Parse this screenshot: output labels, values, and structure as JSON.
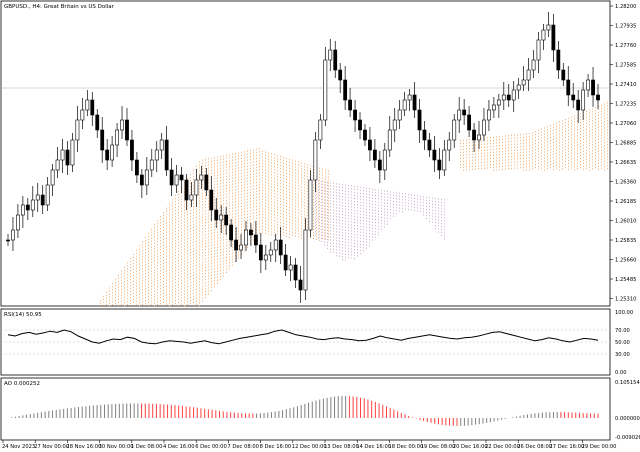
{
  "symbol": {
    "ticker": "GBPUSD",
    "timeframe": "H4",
    "description": "Great Britain vs US Dollar",
    "header_text": "GBPUSD., H4: Great Britain vs US Dollar"
  },
  "price_axis": {
    "ticks": [
      "1.28200",
      "1.27935",
      "1.27760",
      "1.27585",
      "1.27410",
      "1.27235",
      "1.27060",
      "1.26885",
      "1.26635",
      "1.26360",
      "1.26185",
      "1.26010",
      "1.25835",
      "1.25660",
      "1.25485",
      "1.25310"
    ],
    "current_price": "1.27410"
  },
  "rsi_panel": {
    "label": "RSI(14) 50.95",
    "ticks": [
      "100.00",
      "70.00",
      "50.00",
      "30.00",
      "0.00"
    ]
  },
  "ao_panel": {
    "label": "AO 0.000252",
    "ticks": [
      "0.105154",
      "0.000000",
      "-0.009026"
    ]
  },
  "time_axis": {
    "labels": [
      "24 Nov 2023",
      "27 Nov 00:00",
      "28 Nov 16:00",
      "30 Nov 00:00",
      "1 Dec 08:00",
      "4 Dec 16:00",
      "6 Dec 00:00",
      "7 Dec 08:00",
      "8 Dec 16:00",
      "12 Dec 00:00",
      "13 Dec 08:00",
      "14 Dec 16:00",
      "18 Dec 00:00",
      "19 Dec 08:00",
      "20 Dec 16:00",
      "22 Dec 00:00",
      "26 Dec 08:00",
      "27 Dec 16:00",
      "29 Dec 00:00"
    ]
  },
  "colors": {
    "candle_bull": "#ffffff",
    "candle_bear": "#000000",
    "cloud_bull": "#f4a460",
    "cloud_bear": "#c8a2c8",
    "ao_up": "#808080",
    "ao_down": "#ff4040",
    "rsi_line": "#000000",
    "grid_level": "#c0c0c0"
  }
}
